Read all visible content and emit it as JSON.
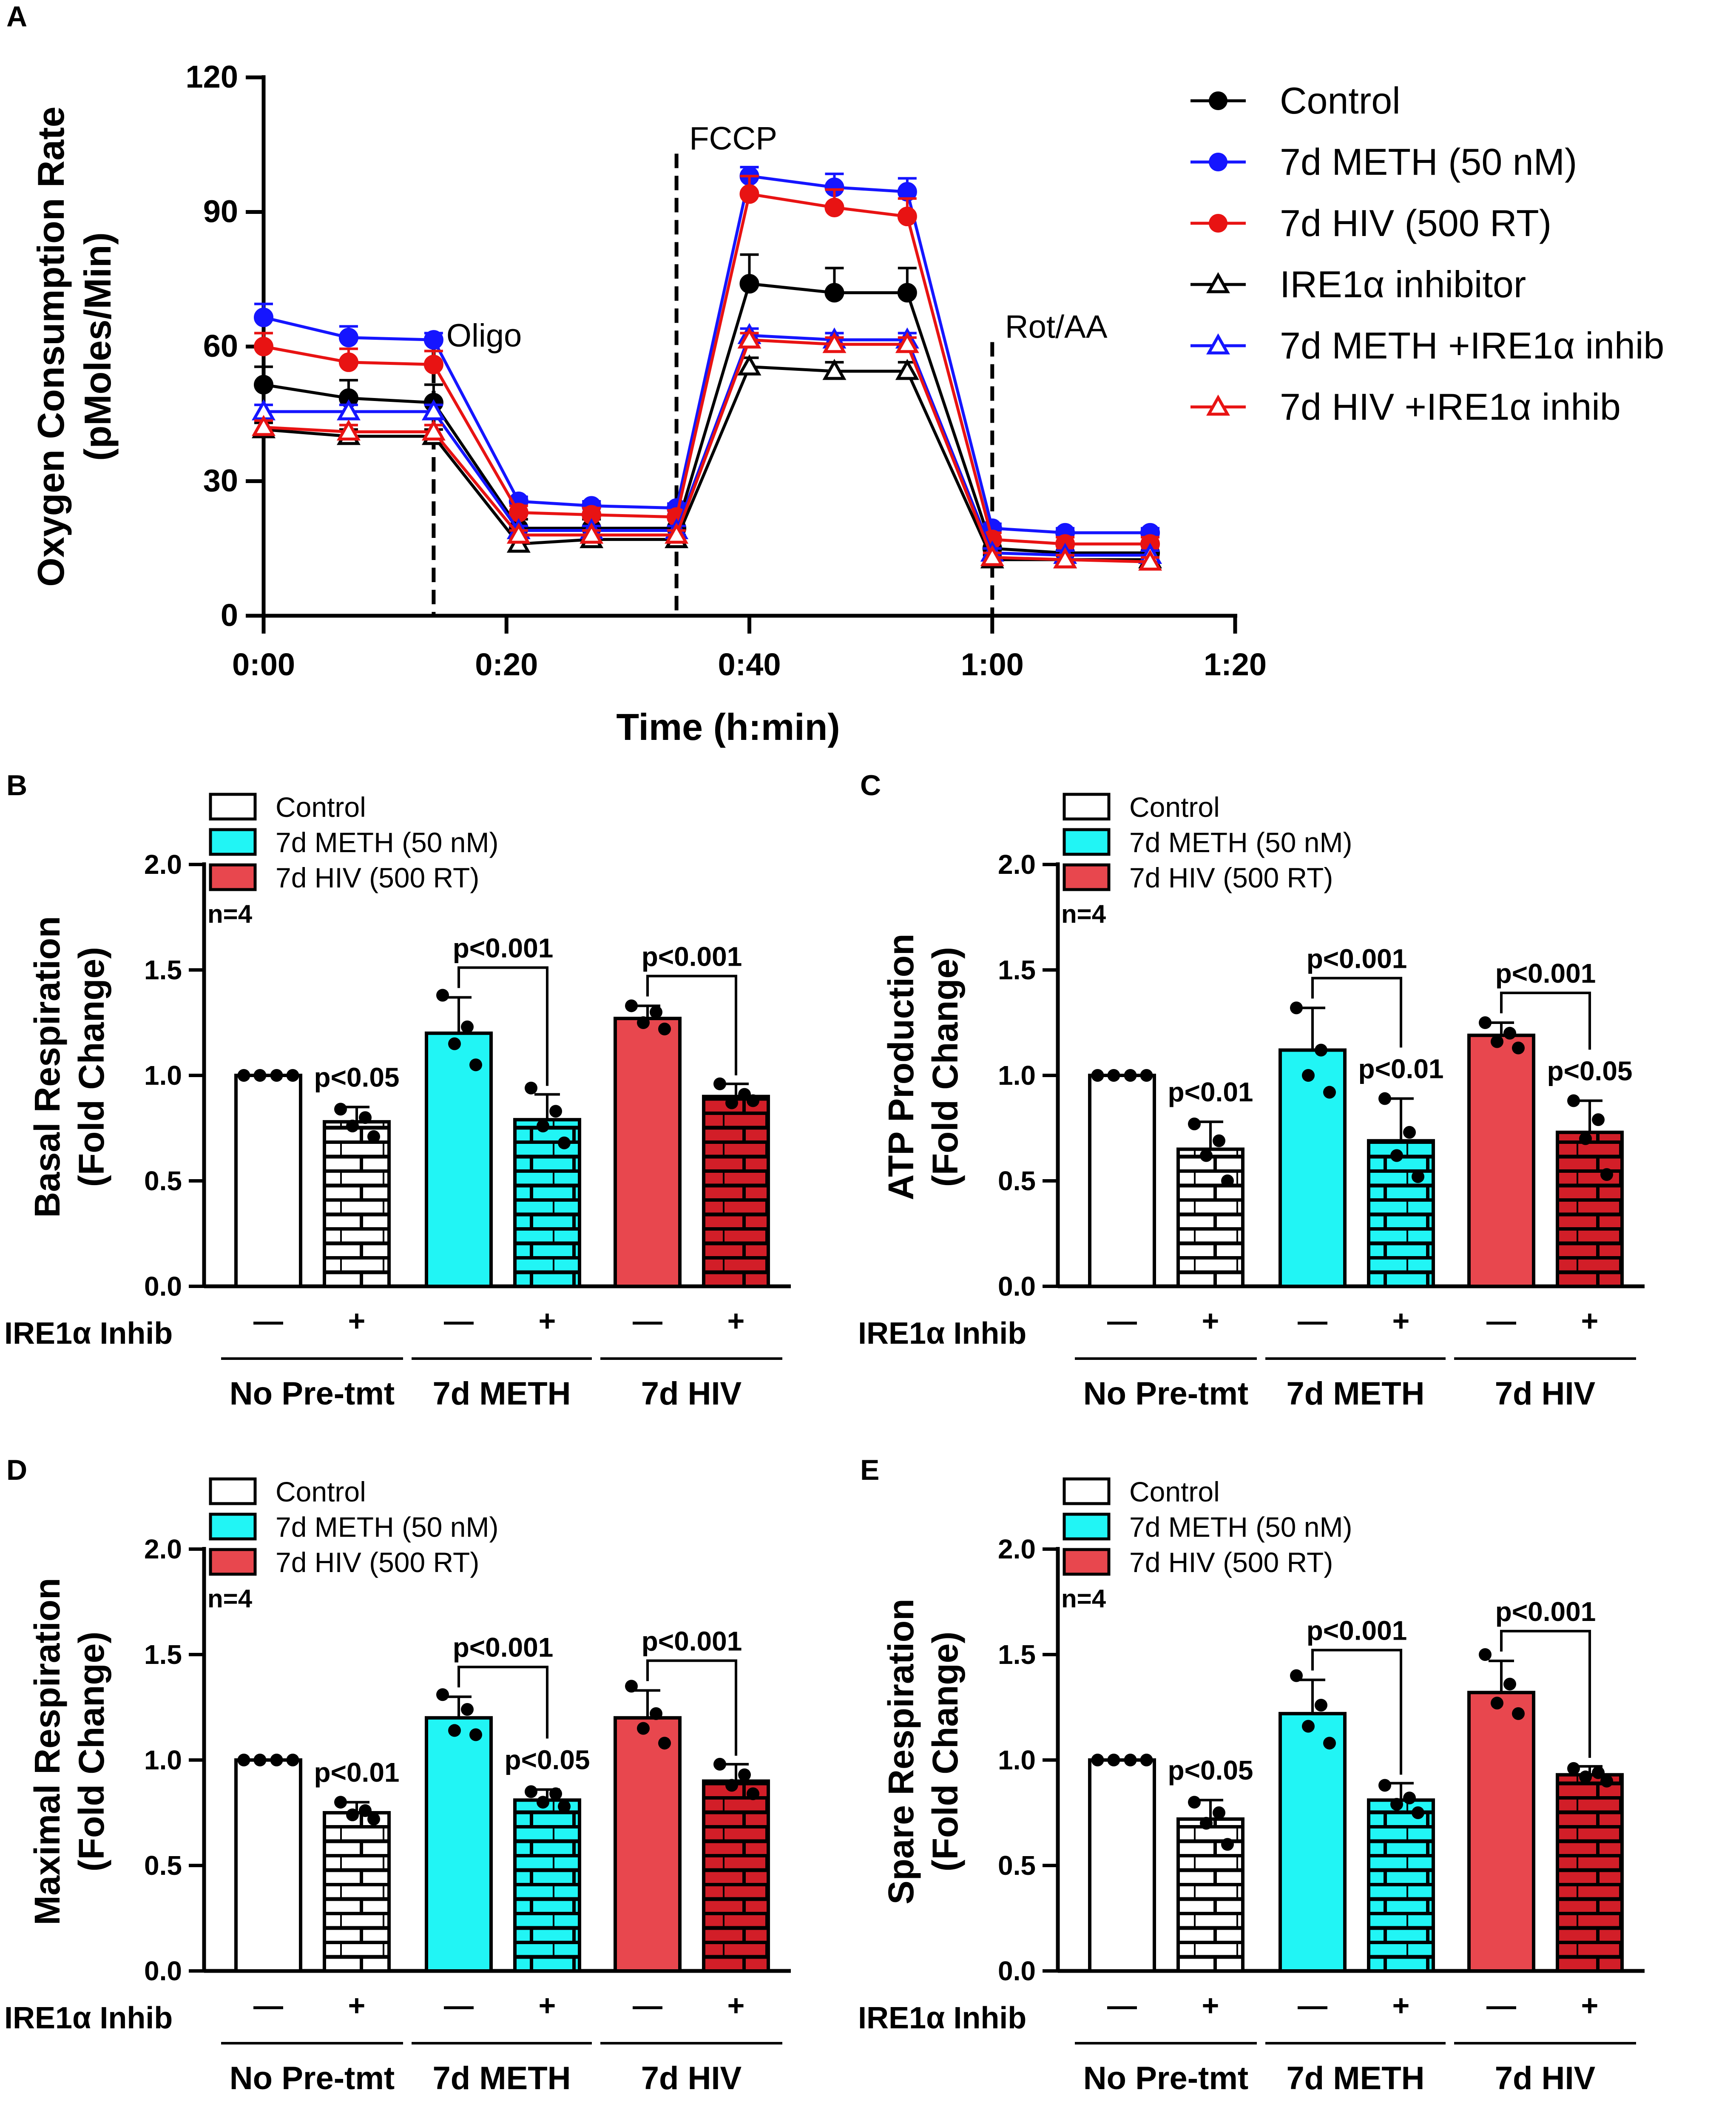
{
  "chart_data": [
    {
      "id": "A",
      "type": "line",
      "panel_label": "A",
      "xlabel": "Time (h:min)",
      "ylabel_line1": "Oxygen Consumption Rate",
      "ylabel_line2": "(pMoles/Min)",
      "xlim": [
        0,
        80
      ],
      "ylim": [
        0,
        120
      ],
      "x_ticks": [
        {
          "v": 0,
          "label": "0:00"
        },
        {
          "v": 20,
          "label": "0:20"
        },
        {
          "v": 40,
          "label": "0:40"
        },
        {
          "v": 60,
          "label": "1:00"
        },
        {
          "v": 80,
          "label": "1:20"
        }
      ],
      "y_ticks": [
        {
          "v": 0,
          "label": "0"
        },
        {
          "v": 30,
          "label": "30"
        },
        {
          "v": 60,
          "label": "60"
        },
        {
          "v": 90,
          "label": "90"
        },
        {
          "v": 120,
          "label": "120"
        }
      ],
      "injections": [
        {
          "x": 14,
          "label": "Oligo",
          "ymin": 0,
          "ymax": 60
        },
        {
          "x": 34,
          "label": "FCCP",
          "ymin": 0,
          "ymax": 103
        },
        {
          "x": 60,
          "label": "Rot/AA",
          "ymin": 0,
          "ymax": 61
        }
      ],
      "x": [
        0,
        7,
        14,
        21,
        27,
        34,
        40,
        47,
        53,
        60,
        66,
        73
      ],
      "series": [
        {
          "name": "Control",
          "color": "#000000",
          "marker": "circle",
          "values": [
            51.5,
            48.5,
            47.5,
            19.5,
            19.5,
            19.5,
            74,
            72,
            72,
            15,
            14,
            14
          ],
          "err": [
            4,
            4,
            4,
            2,
            2,
            2,
            6.5,
            5.5,
            5.5,
            2,
            2,
            2
          ]
        },
        {
          "name": "7d METH (50 nM)",
          "color": "#1515ff",
          "marker": "circle",
          "values": [
            66.5,
            62,
            61.5,
            25.5,
            24.5,
            24,
            98,
            95.5,
            94.5,
            19.5,
            18.5,
            18.5
          ],
          "err": [
            3,
            2.5,
            1.5,
            1,
            1,
            1,
            2,
            3,
            3,
            1,
            1,
            1
          ]
        },
        {
          "name": "7d HIV (500 RT)",
          "color": "#e81313",
          "marker": "circle",
          "values": [
            60,
            56.5,
            56,
            23,
            22.5,
            22,
            94,
            91,
            89,
            17,
            16,
            16
          ],
          "err": [
            3,
            3,
            3,
            1.5,
            1.5,
            1.5,
            4,
            4,
            4,
            1.5,
            1.5,
            1.5
          ]
        },
        {
          "name": "IRE1α inhibitor",
          "color": "#000000",
          "marker": "triangle",
          "values": [
            41.5,
            40,
            40,
            16,
            17,
            17,
            55.5,
            54.5,
            54.5,
            12.5,
            12.5,
            12.5
          ],
          "err": [
            1.5,
            1.5,
            1.5,
            1,
            1,
            1,
            2,
            2,
            2,
            1,
            1,
            1
          ]
        },
        {
          "name": "7d METH +IRE1α inhib",
          "color": "#1515ff",
          "marker": "triangle",
          "values": [
            45.5,
            45.5,
            45.5,
            19,
            19,
            19,
            62.5,
            61.5,
            61.5,
            14,
            13.5,
            13.5
          ],
          "err": [
            1.5,
            1.5,
            1.5,
            1,
            1,
            1,
            1.5,
            1.5,
            1.5,
            1,
            1,
            1
          ]
        },
        {
          "name": "7d HIV +IRE1α inhib",
          "color": "#e81313",
          "marker": "triangle",
          "values": [
            42,
            41,
            41,
            18,
            18,
            18,
            61.5,
            60.5,
            60.5,
            13,
            12.5,
            12
          ],
          "err": [
            1.5,
            1.5,
            1.5,
            1,
            1,
            1,
            1.5,
            1.5,
            1.5,
            1,
            1,
            1
          ]
        }
      ]
    },
    {
      "id": "B",
      "type": "bar",
      "panel_label": "B",
      "ylabel_line1": "Basal Respiration",
      "ylabel_line2": "(Fold Change)",
      "ylim": [
        0,
        2
      ],
      "y_ticks": [
        "0.0",
        "0.5",
        "1.0",
        "1.5",
        "2.0"
      ],
      "legend": [
        "Control",
        "7d METH (50 nM)",
        "7d HIV (500 RT)"
      ],
      "n_label": "n=4",
      "row_label": "IRE1α Inhib",
      "signs": [
        "—",
        "+",
        "—",
        "+",
        "—",
        "+"
      ],
      "groups": [
        "No Pre-tmt",
        "7d METH",
        "7d HIV"
      ],
      "bars": [
        {
          "value": 1.0,
          "err": 0.0,
          "points": [
            1.0,
            1.0,
            1.0,
            1.0
          ]
        },
        {
          "value": 0.78,
          "err": 0.07,
          "points": [
            0.84,
            0.8,
            0.76,
            0.71
          ]
        },
        {
          "value": 1.2,
          "err": 0.17,
          "points": [
            1.38,
            1.23,
            1.15,
            1.05
          ]
        },
        {
          "value": 0.79,
          "err": 0.12,
          "points": [
            0.94,
            0.83,
            0.76,
            0.68
          ]
        },
        {
          "value": 1.27,
          "err": 0.06,
          "points": [
            1.33,
            1.3,
            1.25,
            1.22
          ]
        },
        {
          "value": 0.9,
          "err": 0.06,
          "points": [
            0.96,
            0.91,
            0.87,
            0.88
          ]
        }
      ],
      "stars": [
        {
          "bar": 1,
          "text": "p<0.05"
        }
      ],
      "brackets": [
        {
          "from": 2,
          "to": 3,
          "text": "p<0.001"
        },
        {
          "from": 4,
          "to": 5,
          "text": "p<0.001"
        }
      ]
    },
    {
      "id": "C",
      "type": "bar",
      "panel_label": "C",
      "ylabel_line1": "ATP Production",
      "ylabel_line2": "(Fold Change)",
      "ylim": [
        0,
        2
      ],
      "y_ticks": [
        "0.0",
        "0.5",
        "1.0",
        "1.5",
        "2.0"
      ],
      "legend": [
        "Control",
        "7d METH (50 nM)",
        "7d HIV (500 RT)"
      ],
      "n_label": "n=4",
      "row_label": "IRE1α Inhib",
      "signs": [
        "—",
        "+",
        "—",
        "+",
        "—",
        "+"
      ],
      "groups": [
        "No Pre-tmt",
        "7d METH",
        "7d HIV"
      ],
      "bars": [
        {
          "value": 1.0,
          "err": 0.0,
          "points": [
            1.0,
            1.0,
            1.0,
            1.0
          ]
        },
        {
          "value": 0.65,
          "err": 0.13,
          "points": [
            0.77,
            0.69,
            0.62,
            0.5
          ]
        },
        {
          "value": 1.12,
          "err": 0.2,
          "points": [
            1.32,
            1.12,
            1.0,
            0.92
          ]
        },
        {
          "value": 0.69,
          "err": 0.2,
          "points": [
            0.89,
            0.73,
            0.62,
            0.52
          ]
        },
        {
          "value": 1.19,
          "err": 0.06,
          "points": [
            1.25,
            1.2,
            1.16,
            1.13
          ]
        },
        {
          "value": 0.73,
          "err": 0.15,
          "points": [
            0.88,
            0.79,
            0.7,
            0.53
          ]
        }
      ],
      "stars": [
        {
          "bar": 1,
          "text": "p<0.01"
        },
        {
          "bar": 3,
          "text": "p<0.01"
        },
        {
          "bar": 5,
          "text": "p<0.05"
        }
      ],
      "brackets": [
        {
          "from": 2,
          "to": 3,
          "text": "p<0.001"
        },
        {
          "from": 4,
          "to": 5,
          "text": "p<0.001"
        }
      ]
    },
    {
      "id": "D",
      "type": "bar",
      "panel_label": "D",
      "ylabel_line1": "Maximal Respiration",
      "ylabel_line2": "(Fold Change)",
      "ylim": [
        0,
        2
      ],
      "y_ticks": [
        "0.0",
        "0.5",
        "1.0",
        "1.5",
        "2.0"
      ],
      "legend": [
        "Control",
        "7d METH (50 nM)",
        "7d HIV (500 RT)"
      ],
      "n_label": "n=4",
      "row_label": "IRE1α Inhib",
      "signs": [
        "—",
        "+",
        "—",
        "+",
        "—",
        "+"
      ],
      "groups": [
        "No Pre-tmt",
        "7d METH",
        "7d HIV"
      ],
      "bars": [
        {
          "value": 1.0,
          "err": 0.0,
          "points": [
            1.0,
            1.0,
            1.0,
            1.0
          ]
        },
        {
          "value": 0.75,
          "err": 0.05,
          "points": [
            0.8,
            0.76,
            0.74,
            0.72
          ]
        },
        {
          "value": 1.2,
          "err": 0.1,
          "points": [
            1.31,
            1.24,
            1.14,
            1.12
          ]
        },
        {
          "value": 0.81,
          "err": 0.05,
          "points": [
            0.85,
            0.84,
            0.8,
            0.78
          ]
        },
        {
          "value": 1.2,
          "err": 0.13,
          "points": [
            1.35,
            1.22,
            1.15,
            1.08
          ]
        },
        {
          "value": 0.9,
          "err": 0.08,
          "points": [
            0.98,
            0.93,
            0.88,
            0.84
          ]
        }
      ],
      "stars": [
        {
          "bar": 1,
          "text": "p<0.01"
        },
        {
          "bar": 3,
          "text": "p<0.05"
        }
      ],
      "brackets": [
        {
          "from": 2,
          "to": 3,
          "text": "p<0.001"
        },
        {
          "from": 4,
          "to": 5,
          "text": "p<0.001"
        }
      ]
    },
    {
      "id": "E",
      "type": "bar",
      "panel_label": "E",
      "ylabel_line1": "Spare Respiration",
      "ylabel_line2": "(Fold Change)",
      "ylim": [
        0,
        2
      ],
      "y_ticks": [
        "0.0",
        "0.5",
        "1.0",
        "1.5",
        "2.0"
      ],
      "legend": [
        "Control",
        "7d METH (50 nM)",
        "7d HIV (500 RT)"
      ],
      "n_label": "n=4",
      "row_label": "IRE1α Inhib",
      "signs": [
        "—",
        "+",
        "—",
        "+",
        "—",
        "+"
      ],
      "groups": [
        "No Pre-tmt",
        "7d METH",
        "7d HIV"
      ],
      "bars": [
        {
          "value": 1.0,
          "err": 0.0,
          "points": [
            1.0,
            1.0,
            1.0,
            1.0
          ]
        },
        {
          "value": 0.72,
          "err": 0.09,
          "points": [
            0.8,
            0.75,
            0.7,
            0.6
          ]
        },
        {
          "value": 1.22,
          "err": 0.16,
          "points": [
            1.4,
            1.26,
            1.16,
            1.08
          ]
        },
        {
          "value": 0.81,
          "err": 0.08,
          "points": [
            0.88,
            0.82,
            0.79,
            0.75
          ]
        },
        {
          "value": 1.32,
          "err": 0.15,
          "points": [
            1.5,
            1.36,
            1.27,
            1.22
          ]
        },
        {
          "value": 0.93,
          "err": 0.04,
          "points": [
            0.96,
            0.94,
            0.92,
            0.9
          ]
        }
      ],
      "stars": [
        {
          "bar": 1,
          "text": "p<0.05"
        }
      ],
      "brackets": [
        {
          "from": 2,
          "to": 3,
          "text": "p<0.001"
        },
        {
          "from": 4,
          "to": 5,
          "text": "p<0.001"
        }
      ]
    }
  ],
  "colors": {
    "control": "#ffffff",
    "meth": "#21f5f5",
    "hiv": "#e8474e",
    "hiv_dark": "#d21e28",
    "blue_series": "#1515ff",
    "red_series": "#e81313",
    "axis": "#000000"
  }
}
